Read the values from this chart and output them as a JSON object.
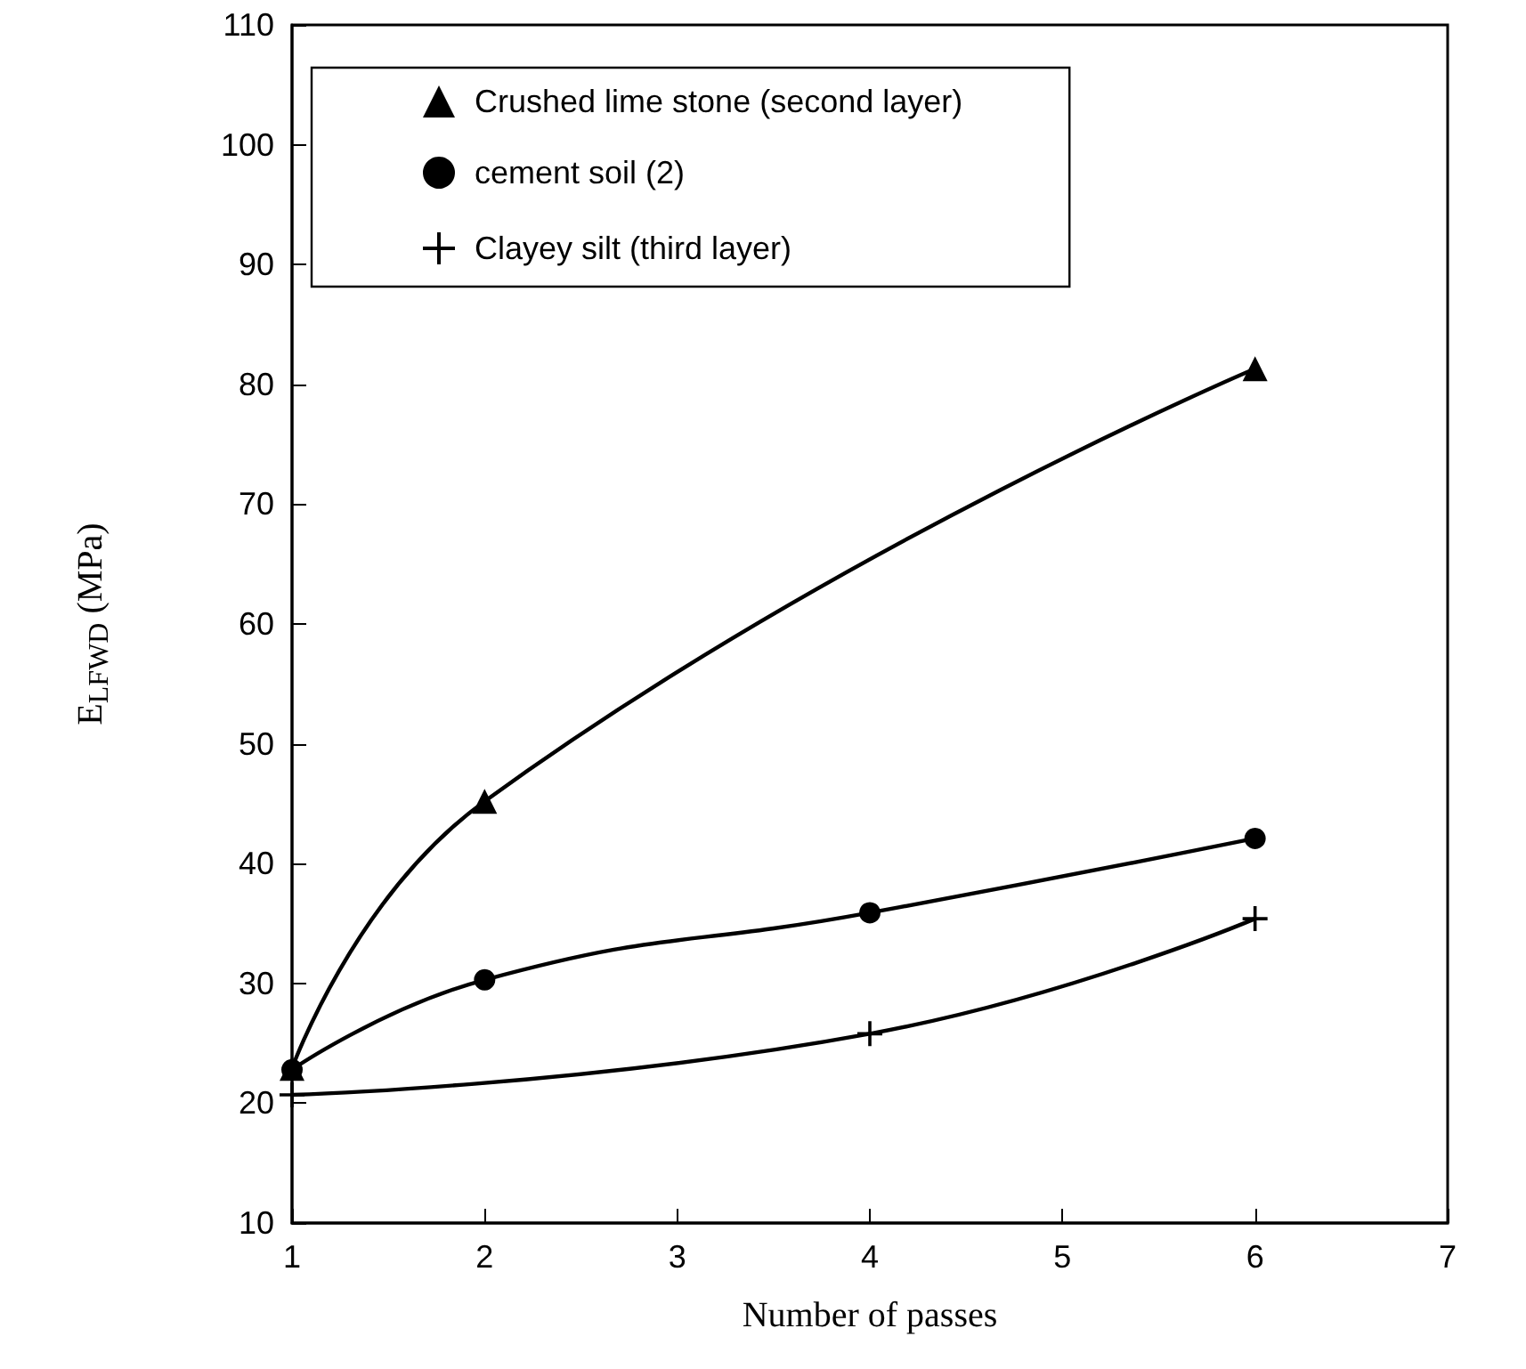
{
  "chart_data": {
    "type": "line",
    "xlabel": "Number of passes",
    "ylabel": "E$_{LFWD}$ (MPa)",
    "xlim": [
      1,
      7
    ],
    "xticks": [
      1,
      2,
      3,
      4,
      5,
      6,
      7
    ],
    "ylim": [
      10,
      110
    ],
    "yticks": [
      10,
      20,
      30,
      40,
      50,
      60,
      70,
      80,
      90,
      100,
      110
    ],
    "legend": "top left",
    "grid": false,
    "series": [
      {
        "name": "Crushed lime stone (second layer)",
        "color": "#000000",
        "marker": "triangle",
        "x": [
          1,
          2,
          6
        ],
        "values": [
          22.9,
          45.2,
          81.3
        ]
      },
      {
        "name": "cement soil (2)",
        "color": "#000000",
        "marker": "circle",
        "x": [
          1,
          2,
          4,
          6
        ],
        "values": [
          22.8,
          30.3,
          35.9,
          42.1
        ]
      },
      {
        "name": "Clayey silt (third layer)",
        "color": "#000000",
        "marker": "cross",
        "x": [
          1,
          4,
          6
        ],
        "values": [
          20.7,
          25.8,
          35.4
        ]
      }
    ]
  }
}
